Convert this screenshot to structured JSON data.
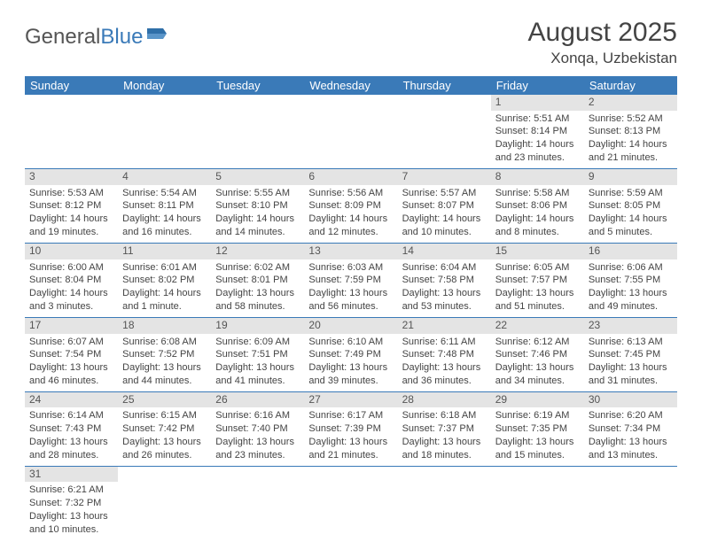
{
  "logo": {
    "part1": "General",
    "part2": "Blue"
  },
  "title": "August 2025",
  "location": "Xonqa, Uzbekistan",
  "weekdays": [
    "Sunday",
    "Monday",
    "Tuesday",
    "Wednesday",
    "Thursday",
    "Friday",
    "Saturday"
  ],
  "colors": {
    "header_bg": "#3a7ab8",
    "row_border": "#3a7ab8",
    "daynum_bg": "#e4e4e4"
  },
  "fonts": {
    "title_size": 30,
    "location_size": 17,
    "th_size": 13,
    "body_size": 11
  },
  "weeks": [
    [
      {
        "n": "",
        "sr": "",
        "ss": "",
        "dl": ""
      },
      {
        "n": "",
        "sr": "",
        "ss": "",
        "dl": ""
      },
      {
        "n": "",
        "sr": "",
        "ss": "",
        "dl": ""
      },
      {
        "n": "",
        "sr": "",
        "ss": "",
        "dl": ""
      },
      {
        "n": "",
        "sr": "",
        "ss": "",
        "dl": ""
      },
      {
        "n": "1",
        "sr": "Sunrise: 5:51 AM",
        "ss": "Sunset: 8:14 PM",
        "dl": "Daylight: 14 hours and 23 minutes."
      },
      {
        "n": "2",
        "sr": "Sunrise: 5:52 AM",
        "ss": "Sunset: 8:13 PM",
        "dl": "Daylight: 14 hours and 21 minutes."
      }
    ],
    [
      {
        "n": "3",
        "sr": "Sunrise: 5:53 AM",
        "ss": "Sunset: 8:12 PM",
        "dl": "Daylight: 14 hours and 19 minutes."
      },
      {
        "n": "4",
        "sr": "Sunrise: 5:54 AM",
        "ss": "Sunset: 8:11 PM",
        "dl": "Daylight: 14 hours and 16 minutes."
      },
      {
        "n": "5",
        "sr": "Sunrise: 5:55 AM",
        "ss": "Sunset: 8:10 PM",
        "dl": "Daylight: 14 hours and 14 minutes."
      },
      {
        "n": "6",
        "sr": "Sunrise: 5:56 AM",
        "ss": "Sunset: 8:09 PM",
        "dl": "Daylight: 14 hours and 12 minutes."
      },
      {
        "n": "7",
        "sr": "Sunrise: 5:57 AM",
        "ss": "Sunset: 8:07 PM",
        "dl": "Daylight: 14 hours and 10 minutes."
      },
      {
        "n": "8",
        "sr": "Sunrise: 5:58 AM",
        "ss": "Sunset: 8:06 PM",
        "dl": "Daylight: 14 hours and 8 minutes."
      },
      {
        "n": "9",
        "sr": "Sunrise: 5:59 AM",
        "ss": "Sunset: 8:05 PM",
        "dl": "Daylight: 14 hours and 5 minutes."
      }
    ],
    [
      {
        "n": "10",
        "sr": "Sunrise: 6:00 AM",
        "ss": "Sunset: 8:04 PM",
        "dl": "Daylight: 14 hours and 3 minutes."
      },
      {
        "n": "11",
        "sr": "Sunrise: 6:01 AM",
        "ss": "Sunset: 8:02 PM",
        "dl": "Daylight: 14 hours and 1 minute."
      },
      {
        "n": "12",
        "sr": "Sunrise: 6:02 AM",
        "ss": "Sunset: 8:01 PM",
        "dl": "Daylight: 13 hours and 58 minutes."
      },
      {
        "n": "13",
        "sr": "Sunrise: 6:03 AM",
        "ss": "Sunset: 7:59 PM",
        "dl": "Daylight: 13 hours and 56 minutes."
      },
      {
        "n": "14",
        "sr": "Sunrise: 6:04 AM",
        "ss": "Sunset: 7:58 PM",
        "dl": "Daylight: 13 hours and 53 minutes."
      },
      {
        "n": "15",
        "sr": "Sunrise: 6:05 AM",
        "ss": "Sunset: 7:57 PM",
        "dl": "Daylight: 13 hours and 51 minutes."
      },
      {
        "n": "16",
        "sr": "Sunrise: 6:06 AM",
        "ss": "Sunset: 7:55 PM",
        "dl": "Daylight: 13 hours and 49 minutes."
      }
    ],
    [
      {
        "n": "17",
        "sr": "Sunrise: 6:07 AM",
        "ss": "Sunset: 7:54 PM",
        "dl": "Daylight: 13 hours and 46 minutes."
      },
      {
        "n": "18",
        "sr": "Sunrise: 6:08 AM",
        "ss": "Sunset: 7:52 PM",
        "dl": "Daylight: 13 hours and 44 minutes."
      },
      {
        "n": "19",
        "sr": "Sunrise: 6:09 AM",
        "ss": "Sunset: 7:51 PM",
        "dl": "Daylight: 13 hours and 41 minutes."
      },
      {
        "n": "20",
        "sr": "Sunrise: 6:10 AM",
        "ss": "Sunset: 7:49 PM",
        "dl": "Daylight: 13 hours and 39 minutes."
      },
      {
        "n": "21",
        "sr": "Sunrise: 6:11 AM",
        "ss": "Sunset: 7:48 PM",
        "dl": "Daylight: 13 hours and 36 minutes."
      },
      {
        "n": "22",
        "sr": "Sunrise: 6:12 AM",
        "ss": "Sunset: 7:46 PM",
        "dl": "Daylight: 13 hours and 34 minutes."
      },
      {
        "n": "23",
        "sr": "Sunrise: 6:13 AM",
        "ss": "Sunset: 7:45 PM",
        "dl": "Daylight: 13 hours and 31 minutes."
      }
    ],
    [
      {
        "n": "24",
        "sr": "Sunrise: 6:14 AM",
        "ss": "Sunset: 7:43 PM",
        "dl": "Daylight: 13 hours and 28 minutes."
      },
      {
        "n": "25",
        "sr": "Sunrise: 6:15 AM",
        "ss": "Sunset: 7:42 PM",
        "dl": "Daylight: 13 hours and 26 minutes."
      },
      {
        "n": "26",
        "sr": "Sunrise: 6:16 AM",
        "ss": "Sunset: 7:40 PM",
        "dl": "Daylight: 13 hours and 23 minutes."
      },
      {
        "n": "27",
        "sr": "Sunrise: 6:17 AM",
        "ss": "Sunset: 7:39 PM",
        "dl": "Daylight: 13 hours and 21 minutes."
      },
      {
        "n": "28",
        "sr": "Sunrise: 6:18 AM",
        "ss": "Sunset: 7:37 PM",
        "dl": "Daylight: 13 hours and 18 minutes."
      },
      {
        "n": "29",
        "sr": "Sunrise: 6:19 AM",
        "ss": "Sunset: 7:35 PM",
        "dl": "Daylight: 13 hours and 15 minutes."
      },
      {
        "n": "30",
        "sr": "Sunrise: 6:20 AM",
        "ss": "Sunset: 7:34 PM",
        "dl": "Daylight: 13 hours and 13 minutes."
      }
    ],
    [
      {
        "n": "31",
        "sr": "Sunrise: 6:21 AM",
        "ss": "Sunset: 7:32 PM",
        "dl": "Daylight: 13 hours and 10 minutes."
      },
      {
        "n": "",
        "sr": "",
        "ss": "",
        "dl": ""
      },
      {
        "n": "",
        "sr": "",
        "ss": "",
        "dl": ""
      },
      {
        "n": "",
        "sr": "",
        "ss": "",
        "dl": ""
      },
      {
        "n": "",
        "sr": "",
        "ss": "",
        "dl": ""
      },
      {
        "n": "",
        "sr": "",
        "ss": "",
        "dl": ""
      },
      {
        "n": "",
        "sr": "",
        "ss": "",
        "dl": ""
      }
    ]
  ]
}
